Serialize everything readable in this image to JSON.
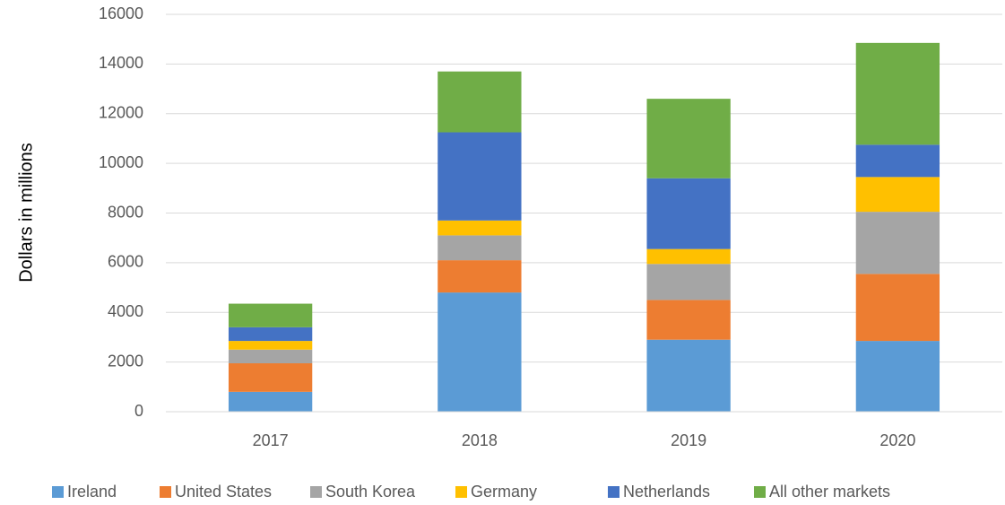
{
  "chart_data": {
    "type": "stacked_bar",
    "y_label": "Dollars in millions",
    "categories": [
      "2017",
      "2018",
      "2019",
      "2020"
    ],
    "series": [
      {
        "name": "Ireland",
        "color": "#5b9bd5",
        "values": [
          800,
          4800,
          2900,
          2850
        ]
      },
      {
        "name": "United States",
        "color": "#ed7d31",
        "values": [
          1150,
          1300,
          1600,
          2700
        ]
      },
      {
        "name": "South Korea",
        "color": "#a5a5a5",
        "values": [
          550,
          1000,
          1450,
          2500
        ]
      },
      {
        "name": "Germany",
        "color": "#ffc000",
        "values": [
          350,
          600,
          600,
          1400
        ]
      },
      {
        "name": "Netherlands",
        "color": "#4472c4",
        "values": [
          550,
          3550,
          2850,
          1300
        ]
      },
      {
        "name": "All other markets",
        "color": "#70ad47",
        "values": [
          950,
          2450,
          3200,
          4100
        ]
      }
    ],
    "ylim": [
      0,
      16000
    ],
    "yticks": [
      0,
      2000,
      4000,
      6000,
      8000,
      10000,
      12000,
      14000,
      16000
    ],
    "grid": true,
    "legend": "bottom"
  }
}
